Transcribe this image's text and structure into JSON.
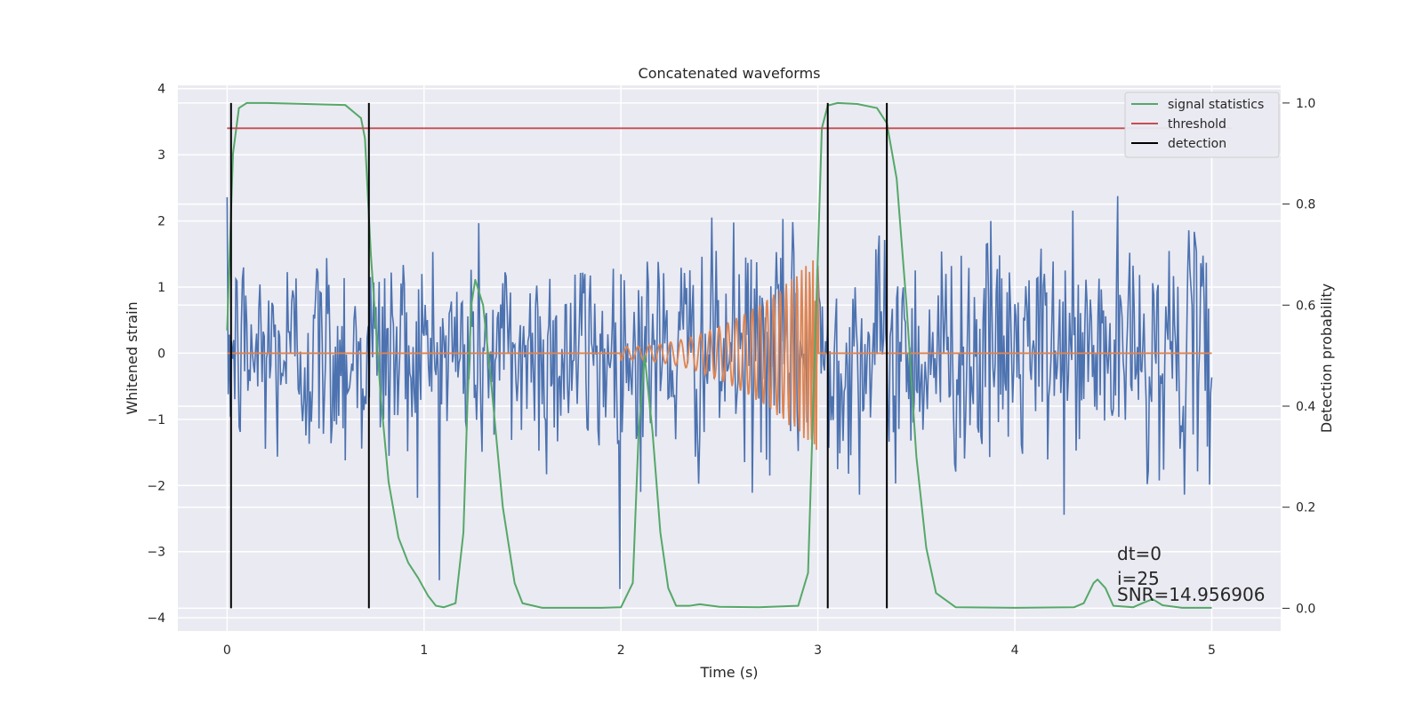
{
  "chart_data": {
    "type": "line",
    "title": "Concatenated waveforms",
    "xlabel": "Time (s)",
    "ylabel": "Whitened strain",
    "y2label": "Detection probability",
    "xlim": [
      -0.25,
      5.35
    ],
    "ylim": [
      -4.2,
      4.05
    ],
    "y2lim": [
      -0.045,
      1.035
    ],
    "x_ticks": [
      0,
      1,
      2,
      3,
      4,
      5
    ],
    "y_ticks": [
      -4,
      -3,
      -2,
      -1,
      0,
      1,
      2,
      3,
      4
    ],
    "y2_ticks": [
      0.0,
      0.2,
      0.4,
      0.6,
      0.8,
      1.0
    ],
    "y2_tick_labels": [
      "0.0",
      "0.2",
      "0.4",
      "0.6",
      "0.8",
      "1.0"
    ],
    "grid": true,
    "legend_position": "top-right",
    "colors": {
      "noise": "#4c72b0",
      "template": "#dd8452",
      "signal_statistics": "#55a868",
      "threshold": "#c44e52",
      "detection": "#000000",
      "axes_background": "#eaeaf2",
      "grid": "#ffffff"
    },
    "series": [
      {
        "name": "signal statistics",
        "axis": "right",
        "x": [
          0.0,
          0.03,
          0.06,
          0.1,
          0.2,
          0.4,
          0.6,
          0.68,
          0.7,
          0.73,
          0.78,
          0.82,
          0.87,
          0.92,
          0.97,
          1.02,
          1.06,
          1.1,
          1.16,
          1.2,
          1.22,
          1.24,
          1.26,
          1.3,
          1.34,
          1.4,
          1.46,
          1.5,
          1.6,
          1.9,
          2.0,
          2.06,
          2.09,
          2.12,
          2.16,
          2.2,
          2.24,
          2.28,
          2.35,
          2.4,
          2.5,
          2.7,
          2.9,
          2.95,
          2.98,
          3.02,
          3.05,
          3.1,
          3.2,
          3.3,
          3.35,
          3.4,
          3.45,
          3.5,
          3.55,
          3.6,
          3.7,
          4.0,
          4.3,
          4.35,
          4.4,
          4.42,
          4.46,
          4.5,
          4.6,
          4.66,
          4.7,
          4.75,
          4.85,
          5.0
        ],
        "values": [
          0.55,
          0.9,
          0.99,
          1.0,
          1.0,
          0.998,
          0.996,
          0.97,
          0.93,
          0.7,
          0.42,
          0.25,
          0.14,
          0.09,
          0.06,
          0.025,
          0.005,
          0.002,
          0.01,
          0.15,
          0.4,
          0.6,
          0.65,
          0.6,
          0.45,
          0.2,
          0.05,
          0.01,
          0.001,
          0.001,
          0.002,
          0.05,
          0.35,
          0.5,
          0.35,
          0.15,
          0.04,
          0.005,
          0.005,
          0.008,
          0.003,
          0.002,
          0.005,
          0.07,
          0.45,
          0.95,
          0.995,
          1.0,
          0.998,
          0.99,
          0.96,
          0.85,
          0.6,
          0.3,
          0.12,
          0.03,
          0.002,
          0.001,
          0.002,
          0.01,
          0.05,
          0.057,
          0.04,
          0.005,
          0.002,
          0.012,
          0.018,
          0.006,
          0.001,
          0.001
        ]
      },
      {
        "name": "threshold",
        "axis": "right",
        "x": [
          0.0,
          5.1
        ],
        "values": [
          0.95,
          0.95
        ]
      },
      {
        "name": "detection",
        "axis": "right",
        "type": "vlines",
        "x": [
          0.02,
          0.72,
          3.05,
          3.35
        ],
        "ymin": 0.0,
        "ymax": 1.0
      }
    ],
    "noise_series": {
      "axis": "left",
      "x_range": [
        0,
        5
      ],
      "samples": 900,
      "sigma": 0.85,
      "clip": [
        -3.9,
        3.4
      ]
    },
    "template_series": {
      "axis": "left",
      "x_range": [
        0,
        5
      ],
      "chirp_start": 2.0,
      "merger": 3.0,
      "amplitude_start": 0.1,
      "amplitude_peak": 1.5
    },
    "annotation": {
      "lines": [
        "dt=0",
        "i=25",
        "SNR=14.956906"
      ]
    }
  }
}
